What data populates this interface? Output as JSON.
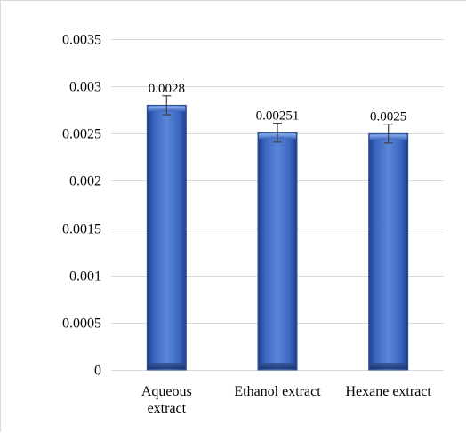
{
  "chart_data": {
    "type": "bar",
    "title": "",
    "xlabel": "",
    "ylabel": "",
    "categories": [
      "Aqueous extract",
      "Ethanol extract",
      "Hexane extract"
    ],
    "category_label_lines": [
      [
        "Aqueous",
        "extract"
      ],
      [
        "Ethanol extract"
      ],
      [
        "Hexane extract"
      ]
    ],
    "values": [
      0.0028,
      0.00251,
      0.0025
    ],
    "data_labels": [
      "0.0028",
      "0.00251",
      "0.0025"
    ],
    "error": [
      0.0001,
      0.0001,
      0.0001
    ],
    "ylim": [
      0,
      0.0035
    ],
    "yticks": [
      0,
      0.0005,
      0.001,
      0.0015,
      0.002,
      0.0025,
      0.003,
      0.0035
    ],
    "ytick_labels": [
      "0",
      "0.0005",
      "0.001",
      "0.0015",
      "0.002",
      "0.0025",
      "0.003",
      "0.0035"
    ],
    "grid": true,
    "legend": "none",
    "colors": {
      "bar_fill": "#4472c4",
      "bar_edge": "#2f528f",
      "gridline": "#d9d9d9",
      "error_bar": "#404040"
    }
  }
}
